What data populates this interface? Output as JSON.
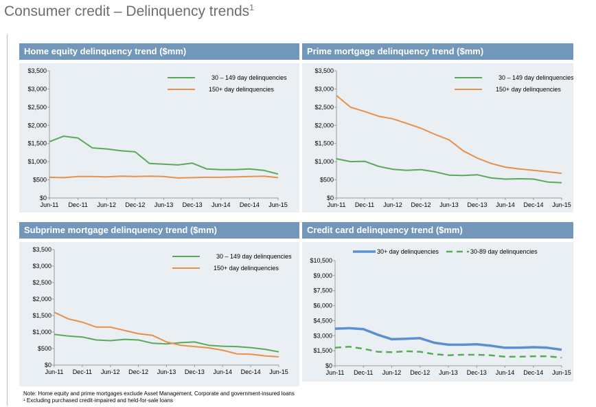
{
  "title": "Consumer credit – Delinquency trends",
  "title_sup": "1",
  "notes": [
    "Note: Home equity and prime mortgages exclude Asset Management, Corporate and government-insured loans",
    "¹ Excluding purchased credit-impaired and held-for-sale loans"
  ],
  "chart_data": [
    {
      "type": "line",
      "title": "Home equity delinquency trend ($mm)",
      "x": [
        "Jun-11",
        "Sep-11",
        "Dec-11",
        "Mar-12",
        "Jun-12",
        "Sep-12",
        "Dec-12",
        "Mar-13",
        "Jun-13",
        "Sep-13",
        "Dec-13",
        "Mar-14",
        "Jun-14",
        "Sep-14",
        "Dec-14",
        "Mar-15",
        "Jun-15"
      ],
      "xticks": [
        "Jun-11",
        "Dec-11",
        "Jun-12",
        "Dec-12",
        "Jun-13",
        "Dec-13",
        "Jun-14",
        "Dec-14",
        "Jun-15"
      ],
      "ylim": [
        0,
        3500
      ],
      "yticks": [
        "$0",
        "$500",
        "$1,000",
        "$1,500",
        "$2,000",
        "$2,500",
        "$3,000",
        "$3,500"
      ],
      "legend": "top-right",
      "series": [
        {
          "name": "30 – 149 day delinquencies",
          "color": "#5aa95a",
          "dash": false,
          "values": [
            1550,
            1700,
            1650,
            1380,
            1350,
            1300,
            1270,
            950,
            930,
            910,
            960,
            800,
            780,
            780,
            800,
            760,
            660
          ]
        },
        {
          "name": "150+ day delinquencies",
          "color": "#e8904a",
          "dash": false,
          "values": [
            570,
            560,
            590,
            590,
            580,
            600,
            590,
            600,
            590,
            550,
            560,
            570,
            570,
            580,
            590,
            600,
            560
          ]
        }
      ]
    },
    {
      "type": "line",
      "title": "Prime mortgage delinquency trend ($mm)",
      "x": [
        "Jun-11",
        "Sep-11",
        "Dec-11",
        "Mar-12",
        "Jun-12",
        "Sep-12",
        "Dec-12",
        "Mar-13",
        "Jun-13",
        "Sep-13",
        "Dec-13",
        "Mar-14",
        "Jun-14",
        "Sep-14",
        "Dec-14",
        "Mar-15",
        "Jun-15"
      ],
      "xticks": [
        "Jun-11",
        "Dec-11",
        "Jun-12",
        "Dec-12",
        "Jun-13",
        "Dec-13",
        "Jun-14",
        "Dec-14",
        "Jun-15"
      ],
      "ylim": [
        0,
        3500
      ],
      "yticks": [
        "$0",
        "$500",
        "$1,000",
        "$1,500",
        "$2,000",
        "$2,500",
        "$3,000",
        "$3,500"
      ],
      "legend": "top-right",
      "series": [
        {
          "name": "30 – 149 day delinquencies",
          "color": "#5aa95a",
          "dash": false,
          "values": [
            1080,
            1000,
            1010,
            870,
            790,
            760,
            780,
            720,
            630,
            620,
            640,
            550,
            520,
            530,
            520,
            440,
            420
          ]
        },
        {
          "name": "150+ day delinquencies",
          "color": "#e8904a",
          "dash": false,
          "values": [
            2820,
            2500,
            2380,
            2250,
            2180,
            2050,
            1920,
            1750,
            1600,
            1300,
            1100,
            950,
            850,
            800,
            760,
            720,
            680
          ]
        }
      ]
    },
    {
      "type": "line",
      "title": "Subprime mortgage delinquency trend ($mm)",
      "x": [
        "Jun-11",
        "Sep-11",
        "Dec-11",
        "Mar-12",
        "Jun-12",
        "Sep-12",
        "Dec-12",
        "Mar-13",
        "Jun-13",
        "Sep-13",
        "Dec-13",
        "Mar-14",
        "Jun-14",
        "Sep-14",
        "Dec-14",
        "Mar-15",
        "Jun-15"
      ],
      "xticks": [
        "Jun-11",
        "Dec-11",
        "Jun-12",
        "Dec-12",
        "Jun-13",
        "Dec-13",
        "Jun-14",
        "Dec-14",
        "Jun-15"
      ],
      "ylim": [
        0,
        3500
      ],
      "yticks": [
        "$0",
        "$500",
        "$1,000",
        "$1,500",
        "$2,000",
        "$2,500",
        "$3,000",
        "$3,500"
      ],
      "legend": "top-right",
      "series": [
        {
          "name": "30 – 149 day delinquencies",
          "color": "#5aa95a",
          "dash": false,
          "values": [
            930,
            880,
            850,
            760,
            740,
            780,
            760,
            660,
            640,
            680,
            700,
            600,
            570,
            560,
            530,
            480,
            400
          ]
        },
        {
          "name": "150+ day delinquencies",
          "color": "#e8904a",
          "dash": false,
          "values": [
            1600,
            1400,
            1300,
            1150,
            1150,
            1050,
            950,
            900,
            700,
            600,
            560,
            520,
            450,
            340,
            330,
            280,
            250
          ]
        }
      ]
    },
    {
      "type": "line",
      "title": "Credit card delinquency trend ($mm)",
      "x": [
        "Jun-11",
        "Sep-11",
        "Dec-11",
        "Mar-12",
        "Jun-12",
        "Sep-12",
        "Dec-12",
        "Mar-13",
        "Jun-13",
        "Sep-13",
        "Dec-13",
        "Mar-14",
        "Jun-14",
        "Sep-14",
        "Dec-14",
        "Mar-15",
        "Jun-15"
      ],
      "xticks": [
        "Jun-11",
        "Dec-11",
        "Jun-12",
        "Dec-12",
        "Jun-13",
        "Dec-13",
        "Jun-14",
        "Dec-14",
        "Jun-15"
      ],
      "ylim": [
        0,
        10500
      ],
      "yticks": [
        "$0",
        "$1,500",
        "$3,000",
        "$4,500",
        "$6,000",
        "$7,500",
        "$9,000",
        "$10,500"
      ],
      "legend": "top",
      "series": [
        {
          "name": "30+ day delinquencies",
          "color": "#5b8fd1",
          "dash": false,
          "values": [
            3700,
            3750,
            3650,
            3100,
            2650,
            2700,
            2750,
            2300,
            2100,
            2100,
            2150,
            2000,
            1800,
            1800,
            1850,
            1800,
            1600
          ]
        },
        {
          "name": "30-89 day delinquencies",
          "color": "#5aa95a",
          "dash": true,
          "values": [
            1800,
            1900,
            1700,
            1400,
            1350,
            1450,
            1400,
            1150,
            1050,
            1100,
            1100,
            1050,
            900,
            900,
            950,
            950,
            800
          ]
        }
      ]
    }
  ]
}
